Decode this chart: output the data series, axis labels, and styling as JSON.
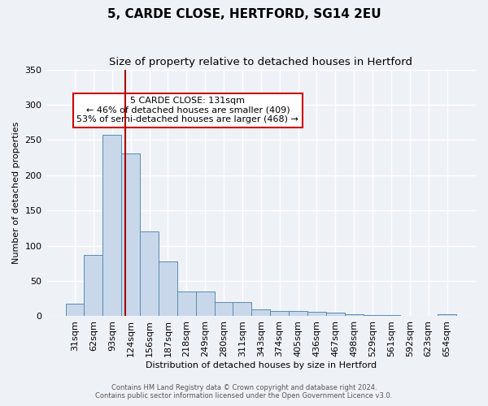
{
  "title1": "5, CARDE CLOSE, HERTFORD, SG14 2EU",
  "title2": "Size of property relative to detached houses in Hertford",
  "xlabel": "Distribution of detached houses by size in Hertford",
  "ylabel": "Number of detached properties",
  "categories": [
    "31sqm",
    "62sqm",
    "93sqm",
    "124sqm",
    "156sqm",
    "187sqm",
    "218sqm",
    "249sqm",
    "280sqm",
    "311sqm",
    "343sqm",
    "374sqm",
    "405sqm",
    "436sqm",
    "467sqm",
    "498sqm",
    "529sqm",
    "561sqm",
    "592sqm",
    "623sqm",
    "654sqm"
  ],
  "values": [
    18,
    87,
    257,
    231,
    120,
    78,
    35,
    35,
    20,
    20,
    10,
    8,
    8,
    6,
    5,
    3,
    2,
    2,
    0,
    0,
    3
  ],
  "bar_color": "#c8d8ea",
  "bar_edge_color": "#5a8ab0",
  "ylim": [
    0,
    350
  ],
  "yticks": [
    0,
    50,
    100,
    150,
    200,
    250,
    300,
    350
  ],
  "vline_color": "#aa0000",
  "annotation_title": "5 CARDE CLOSE: 131sqm",
  "annotation_line1": "← 46% of detached houses are smaller (409)",
  "annotation_line2": "53% of semi-detached houses are larger (468) →",
  "annotation_box_color": "#ffffff",
  "annotation_border_color": "#cc0000",
  "footnote1": "Contains HM Land Registry data © Crown copyright and database right 2024.",
  "footnote2": "Contains public sector information licensed under the Open Government Licence v3.0.",
  "bg_color": "#eef2f7",
  "plot_bg_color": "#eef2f7",
  "grid_color": "#ffffff",
  "title1_fontsize": 11,
  "title2_fontsize": 9.5,
  "axis_label_fontsize": 8,
  "tick_fontsize": 8,
  "bar_width": 1.0
}
